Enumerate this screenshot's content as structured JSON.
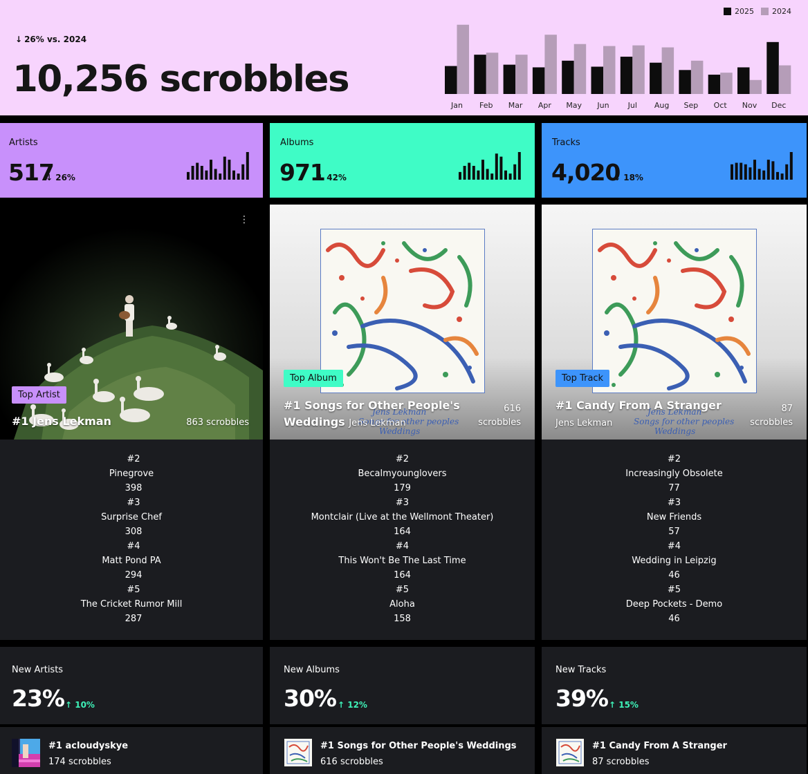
{
  "header": {
    "trend_text": "26% vs. 2024",
    "total_text": "10,256 scrobbles",
    "legend": [
      {
        "label": "2025",
        "color": "#0d0d0d"
      },
      {
        "label": "2024",
        "color": "#b59db8"
      }
    ]
  },
  "chart_data": {
    "type": "bar",
    "categories": [
      "Jan",
      "Feb",
      "Mar",
      "Apr",
      "May",
      "Jun",
      "Jul",
      "Aug",
      "Sep",
      "Oct",
      "Nov",
      "Dec"
    ],
    "series": [
      {
        "name": "2025",
        "values": [
          42,
          59,
          44,
          40,
          50,
          41,
          56,
          47,
          36,
          29,
          40,
          78
        ]
      },
      {
        "name": "2024",
        "values": [
          104,
          62,
          59,
          89,
          75,
          72,
          73,
          70,
          50,
          32,
          21,
          43
        ]
      }
    ],
    "colors": {
      "2025": "#0d0d0d",
      "2024": "#b59db8"
    },
    "ylim": [
      0,
      110
    ],
    "legend_position": "top-right",
    "grid": false
  },
  "stats": [
    {
      "label": "Artists",
      "value": "517",
      "change": "26%",
      "direction": "down",
      "bg": "#c890fb",
      "spark": [
        5,
        9,
        11,
        9,
        6,
        13,
        7,
        4,
        15,
        13,
        6,
        4,
        10,
        18
      ]
    },
    {
      "label": "Albums",
      "value": "971",
      "change": "42%",
      "direction": "down",
      "bg": "#3ffcc6",
      "spark": [
        5,
        9,
        11,
        9,
        6,
        13,
        7,
        4,
        17,
        15,
        6,
        4,
        10,
        18
      ]
    },
    {
      "label": "Tracks",
      "value": "4,020",
      "change": "18%",
      "direction": "down",
      "bg": "#3d94fb",
      "spark": [
        10,
        11,
        11,
        10,
        8,
        13,
        7,
        6,
        13,
        12,
        5,
        4,
        10,
        18
      ]
    }
  ],
  "top": [
    {
      "badge": "Top Artist",
      "badge_color": "#c890fb",
      "title": "#1 Jens Lekman",
      "subtitle": "",
      "count": "863 scrobbles",
      "menu": "⋮"
    },
    {
      "badge": "Top Album",
      "badge_color": "#3ffcc6",
      "title": "#1 Songs for Other People's Weddings",
      "subtitle": "Jens Lekman",
      "count_num": "616",
      "count_unit": "scrobbles"
    },
    {
      "badge": "Top Track",
      "badge_color": "#3d94fb",
      "title": "#1 Candy From A Stranger",
      "subtitle": "Jens Lekman",
      "count_num": "87",
      "count_unit": "scrobbles"
    }
  ],
  "cover_text": {
    "line1": "Jens Lekman",
    "line2": "Songs for other peoples",
    "line3": "Weddings"
  },
  "rankings": [
    [
      {
        "rank": "#2",
        "name": "Pinegrove",
        "count": "398"
      },
      {
        "rank": "#3",
        "name": "Surprise Chef",
        "count": "308"
      },
      {
        "rank": "#4",
        "name": "Matt Pond PA",
        "count": "294"
      },
      {
        "rank": "#5",
        "name": "The Cricket Rumor Mill",
        "count": "287"
      }
    ],
    [
      {
        "rank": "#2",
        "name": "Becalmyounglovers",
        "count": "179"
      },
      {
        "rank": "#3",
        "name": "Montclair (Live at the Wellmont Theater)",
        "count": "164"
      },
      {
        "rank": "#4",
        "name": "This Won't Be The Last Time",
        "count": "164"
      },
      {
        "rank": "#5",
        "name": "Aloha",
        "count": "158"
      }
    ],
    [
      {
        "rank": "#2",
        "name": "Increasingly Obsolete",
        "count": "77"
      },
      {
        "rank": "#3",
        "name": "New Friends",
        "count": "57"
      },
      {
        "rank": "#4",
        "name": "Wedding in Leipzig",
        "count": "46"
      },
      {
        "rank": "#5",
        "name": "Deep Pockets - Demo",
        "count": "46"
      }
    ]
  ],
  "new_stats": [
    {
      "label": "New Artists",
      "value": "23%",
      "change": "10%",
      "direction": "up"
    },
    {
      "label": "New Albums",
      "value": "30%",
      "change": "12%",
      "direction": "up"
    },
    {
      "label": "New Tracks",
      "value": "39%",
      "change": "15%",
      "direction": "up"
    }
  ],
  "new_top": [
    {
      "name": "#1 acloudyskye",
      "count": "174 scrobbles"
    },
    {
      "name": "#1 Songs for Other People's Weddings",
      "count": "616 scrobbles"
    },
    {
      "name": "#1 Candy From A Stranger",
      "count": "87 scrobbles"
    }
  ]
}
